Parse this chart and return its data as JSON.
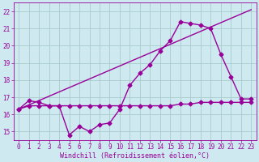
{
  "xlabel": "Windchill (Refroidissement éolien,°C)",
  "background_color": "#ceeaf0",
  "grid_color": "#aacccc",
  "line_color": "#990099",
  "xlim": [
    -0.5,
    23.5
  ],
  "ylim": [
    14.5,
    22.5
  ],
  "yticks": [
    15,
    16,
    17,
    18,
    19,
    20,
    21,
    22
  ],
  "xticks": [
    0,
    1,
    2,
    3,
    4,
    5,
    6,
    7,
    8,
    9,
    10,
    11,
    12,
    13,
    14,
    15,
    16,
    17,
    18,
    19,
    20,
    21,
    22,
    23
  ],
  "series1_x": [
    0,
    1,
    2,
    3,
    4,
    5,
    6,
    7,
    8,
    9,
    10,
    11,
    12,
    13,
    14,
    15,
    16,
    17,
    18,
    19,
    20,
    21,
    22,
    23
  ],
  "series1_y": [
    16.3,
    16.8,
    16.7,
    16.5,
    16.5,
    14.8,
    15.3,
    15.0,
    15.4,
    15.5,
    16.3,
    17.7,
    18.4,
    18.9,
    19.7,
    20.3,
    21.4,
    21.3,
    21.2,
    21.0,
    19.5,
    18.2,
    16.9,
    16.9
  ],
  "series2_x": [
    0,
    1,
    2,
    3,
    4,
    5,
    6,
    7,
    8,
    9,
    10,
    11,
    12,
    13,
    14,
    15,
    16,
    17,
    18,
    19,
    20,
    21,
    22,
    23
  ],
  "series2_y": [
    16.3,
    16.5,
    16.5,
    16.5,
    16.5,
    16.5,
    16.5,
    16.5,
    16.5,
    16.5,
    16.5,
    16.5,
    16.5,
    16.5,
    16.5,
    16.5,
    16.6,
    16.6,
    16.7,
    16.7,
    16.7,
    16.7,
    16.7,
    16.7
  ],
  "series3_x": [
    0,
    23
  ],
  "series3_y": [
    16.3,
    22.1
  ],
  "marker": "D",
  "marker_size": 2.5,
  "line_width": 1.0,
  "axis_fontsize": 6,
  "tick_fontsize": 5.5
}
